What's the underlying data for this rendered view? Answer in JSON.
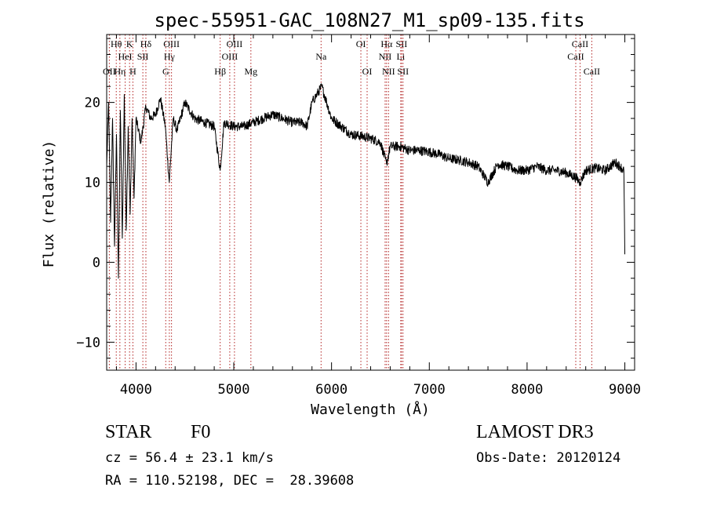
{
  "chart_data": {
    "type": "line",
    "title": "spec-55951-GAC_108N27_M1_sp09-135.fits",
    "xlabel": "Wavelength (Å)",
    "ylabel": "Flux (relative)",
    "xlim": [
      3700,
      9100
    ],
    "ylim": [
      -13.5,
      28.5
    ],
    "x_ticks": [
      4000,
      5000,
      6000,
      7000,
      8000,
      9000
    ],
    "x_tick_labels": [
      "4000",
      "5000",
      "6000",
      "7000",
      "8000",
      "9000"
    ],
    "y_ticks": [
      -10,
      0,
      10,
      20
    ],
    "y_tick_labels": [
      "−10",
      "0",
      "10",
      "20"
    ],
    "series": [
      {
        "name": "flux",
        "x": [
          3700,
          3720,
          3740,
          3760,
          3780,
          3800,
          3820,
          3840,
          3860,
          3880,
          3900,
          3920,
          3940,
          3960,
          3980,
          4000,
          4050,
          4101,
          4150,
          4200,
          4250,
          4300,
          4340,
          4380,
          4420,
          4500,
          4600,
          4700,
          4800,
          4861,
          4900,
          5000,
          5100,
          5200,
          5300,
          5400,
          5500,
          5600,
          5700,
          5750,
          5800,
          5850,
          5900,
          5950,
          6000,
          6050,
          6100,
          6200,
          6300,
          6400,
          6500,
          6563,
          6600,
          6700,
          6800,
          6900,
          7000,
          7100,
          7200,
          7300,
          7400,
          7500,
          7600,
          7700,
          7800,
          7900,
          8000,
          8100,
          8200,
          8300,
          8400,
          8500,
          8542,
          8600,
          8700,
          8800,
          8900,
          8950,
          8990,
          9000
        ],
        "values": [
          12,
          20,
          5,
          18,
          2,
          16,
          -2,
          19,
          3,
          21,
          4,
          17,
          6,
          18,
          8,
          18,
          15,
          19.5,
          18,
          18.5,
          20.5,
          17,
          10,
          18,
          16.5,
          20,
          18,
          17.5,
          17,
          11.5,
          17.5,
          17,
          17,
          17.5,
          18,
          18.5,
          18,
          17.5,
          17.5,
          17,
          20,
          21,
          22,
          20,
          18,
          17.5,
          17,
          16,
          15.8,
          15.5,
          15,
          12.3,
          14.5,
          14.5,
          14,
          14,
          13.8,
          13.5,
          13,
          12.8,
          12.5,
          12,
          10,
          12.3,
          12,
          11.5,
          11.5,
          12,
          11.5,
          11.5,
          11.2,
          10.6,
          10,
          11.5,
          11.8,
          11.5,
          12.5,
          12,
          11.5,
          1
        ],
        "noise": 0.5
      }
    ],
    "line_markers": [
      {
        "name": "OII",
        "wavelength": 3727,
        "row": 3
      },
      {
        "name": "Hθ",
        "wavelength": 3798,
        "row": 1
      },
      {
        "name": "Hη",
        "wavelength": 3835,
        "row": 3
      },
      {
        "name": "HeI",
        "wavelength": 3889,
        "row": 2
      },
      {
        "name": "K",
        "wavelength": 3934,
        "row": 1
      },
      {
        "name": "H",
        "wavelength": 3968,
        "row": 3
      },
      {
        "name": "SII",
        "wavelength": 4070,
        "row": 2
      },
      {
        "name": "Hδ",
        "wavelength": 4101,
        "row": 1
      },
      {
        "name": "G",
        "wavelength": 4304,
        "row": 3
      },
      {
        "name": "Hγ",
        "wavelength": 4341,
        "row": 2
      },
      {
        "name": "OIII",
        "wavelength": 4363,
        "row": 1
      },
      {
        "name": "Hβ",
        "wavelength": 4861,
        "row": 3
      },
      {
        "name": "OIII",
        "wavelength": 4959,
        "row": 2
      },
      {
        "name": "OIII",
        "wavelength": 5007,
        "row": 1
      },
      {
        "name": "Mg",
        "wavelength": 5175,
        "row": 3
      },
      {
        "name": "Na",
        "wavelength": 5893,
        "row": 2
      },
      {
        "name": "OI",
        "wavelength": 6300,
        "row": 1
      },
      {
        "name": "OI",
        "wavelength": 6364,
        "row": 3
      },
      {
        "name": "NII",
        "wavelength": 6548,
        "row": 2
      },
      {
        "name": "Hα",
        "wavelength": 6563,
        "row": 1
      },
      {
        "name": "NII",
        "wavelength": 6583,
        "row": 3
      },
      {
        "name": "Li",
        "wavelength": 6708,
        "row": 2
      },
      {
        "name": "SII",
        "wavelength": 6716,
        "row": 1
      },
      {
        "name": "SII",
        "wavelength": 6731,
        "row": 3
      },
      {
        "name": "CaII",
        "wavelength": 8498,
        "row": 2
      },
      {
        "name": "CaII",
        "wavelength": 8542,
        "row": 1
      },
      {
        "name": "CaII",
        "wavelength": 8662,
        "row": 3
      }
    ]
  },
  "info": {
    "class_label": "STAR",
    "subclass": "F0",
    "survey": "LAMOST DR3",
    "cz": "cz = 56.4 ± 23.1 km/s",
    "obs_date": "Obs-Date: 20120124",
    "radec": "RA = 110.52198, DEC =  28.39608"
  },
  "colors": {
    "line_marker": "#b22222",
    "spectrum": "#000000"
  }
}
